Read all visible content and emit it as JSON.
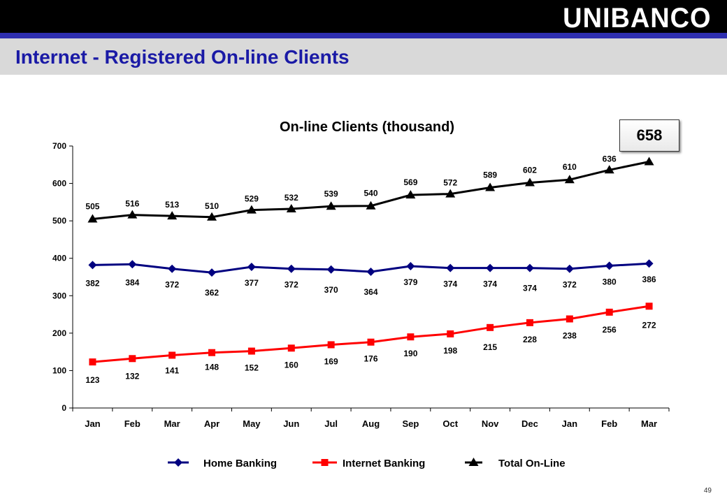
{
  "header": {
    "logo_text": "UNIBANCO",
    "title": "Internet - Registered On-line Clients",
    "page_number": "49",
    "colors": {
      "bar": "#000000",
      "accent": "#2f2fb0",
      "title": "#1a1aa6"
    }
  },
  "callout": {
    "value": "658"
  },
  "chart_data": {
    "type": "line",
    "title": "On-line Clients (thousand)",
    "xlabel": "",
    "ylabel": "",
    "categories": [
      "Jan",
      "Feb",
      "Mar",
      "Apr",
      "May",
      "Jun",
      "Jul",
      "Aug",
      "Sep",
      "Oct",
      "Nov",
      "Dec",
      "Jan",
      "Feb",
      "Mar"
    ],
    "ylim": [
      0,
      700
    ],
    "yticks": [
      0,
      100,
      200,
      300,
      400,
      500,
      600,
      700
    ],
    "grid": false,
    "legend_position": "bottom",
    "series": [
      {
        "name": "Home Banking",
        "color": "#000080",
        "marker": "diamond",
        "values": [
          382,
          384,
          372,
          362,
          377,
          372,
          370,
          364,
          379,
          374,
          374,
          374,
          372,
          380,
          386
        ],
        "labels": [
          "382",
          "384",
          "372",
          "362",
          "377",
          "372",
          "370",
          "364",
          "379",
          "374",
          "374",
          "374",
          "372",
          "380",
          "386"
        ]
      },
      {
        "name": "Internet Banking",
        "color": "#ff0000",
        "marker": "square",
        "values": [
          123,
          132,
          141,
          148,
          152,
          160,
          169,
          176,
          190,
          198,
          215,
          228,
          238,
          256,
          272
        ],
        "labels": [
          "123",
          "132",
          "141",
          "148",
          "152",
          "160",
          "169",
          "176",
          "190",
          "198",
          "215",
          "228",
          "238",
          "256",
          "272"
        ]
      },
      {
        "name": "Total On-Line",
        "color": "#000000",
        "marker": "triangle",
        "values": [
          505,
          516,
          513,
          510,
          529,
          532,
          539,
          540,
          569,
          572,
          589,
          602,
          610,
          636,
          658
        ],
        "labels": [
          "505",
          "516",
          "513",
          "510",
          "529",
          "532",
          "539",
          "540",
          "569",
          "572",
          "589",
          "602",
          "610",
          "636",
          ""
        ]
      }
    ]
  }
}
